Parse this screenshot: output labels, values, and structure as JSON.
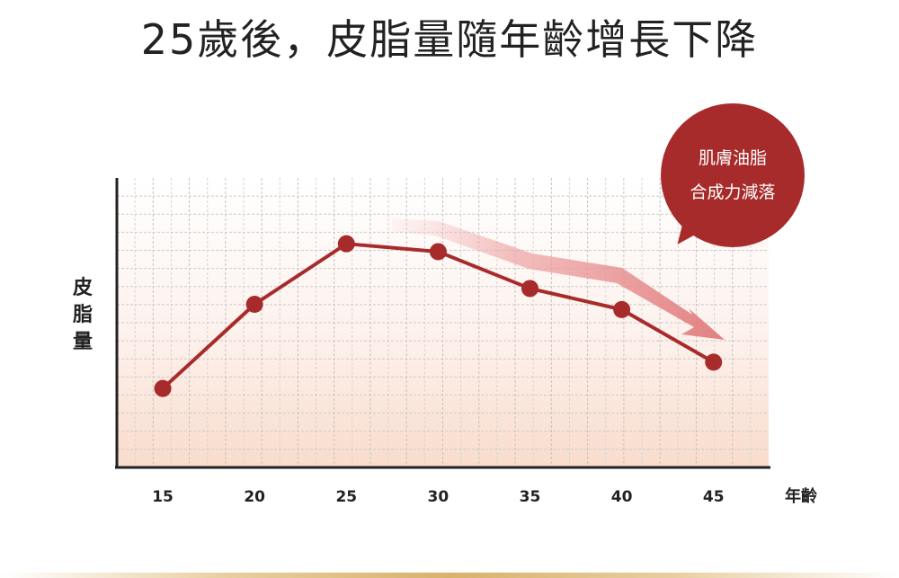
{
  "title": "25歲後，皮脂量隨年齡增長下降",
  "y_axis_chars": [
    "皮",
    "脂",
    "量"
  ],
  "x_unit": "年齡",
  "callout": {
    "line1": "肌膚油脂",
    "line2": "合成力減落"
  },
  "colors": {
    "line": "#a82b2b",
    "callout": "#a82b2b",
    "arrow": "#e07a7a"
  },
  "chart_data": {
    "type": "line",
    "x": [
      15,
      20,
      25,
      30,
      35,
      40,
      45
    ],
    "values": [
      2.0,
      5.2,
      7.5,
      7.2,
      5.8,
      5.0,
      3.0
    ],
    "xlabel": "年齡",
    "ylabel": "皮脂量",
    "xlim": [
      12.5,
      48
    ],
    "ylim": [
      -1,
      10
    ],
    "y_tick_labels": false,
    "grid": true
  }
}
